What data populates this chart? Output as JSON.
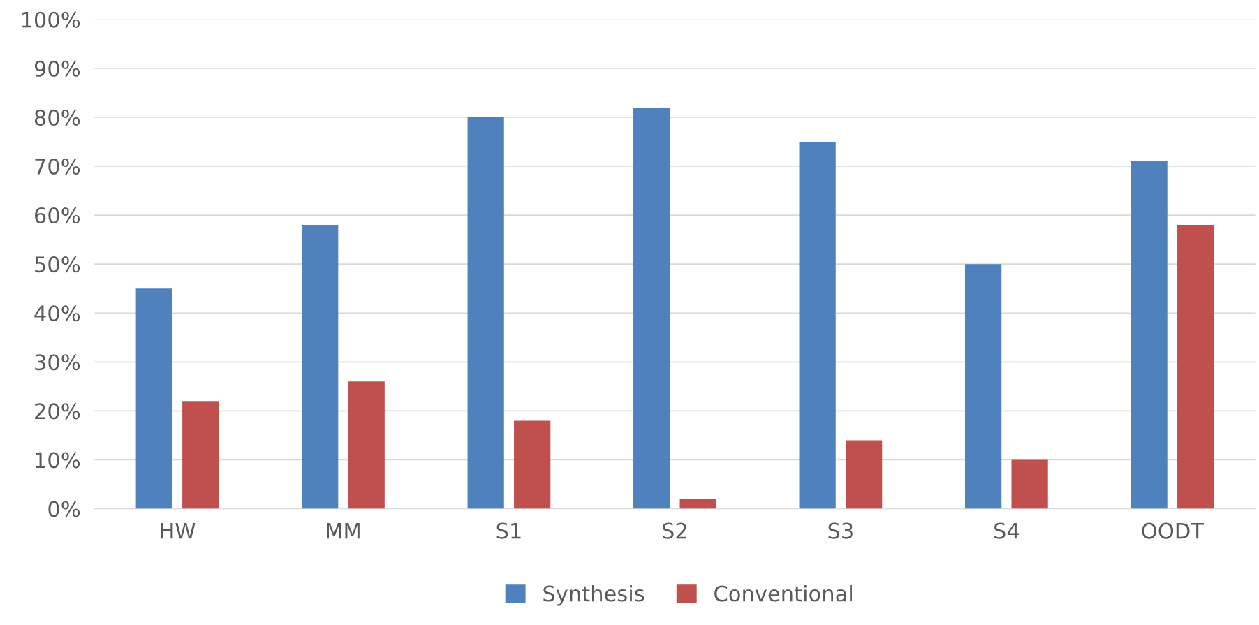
{
  "chart_data": {
    "type": "bar",
    "categories": [
      "HW",
      "MM",
      "S1",
      "S2",
      "S3",
      "S4",
      "OODT"
    ],
    "series": [
      {
        "name": "Synthesis",
        "color": "#4f81bd",
        "values": [
          45,
          58,
          80,
          82,
          75,
          50,
          71
        ]
      },
      {
        "name": "Conventional",
        "color": "#c0504d",
        "values": [
          22,
          26,
          18,
          2,
          14,
          10,
          58
        ]
      }
    ],
    "ylim": [
      0,
      100
    ],
    "yticks": [
      {
        "value": 0,
        "label": "0%"
      },
      {
        "value": 10,
        "label": "10%"
      },
      {
        "value": 20,
        "label": "20%"
      },
      {
        "value": 30,
        "label": "30%"
      },
      {
        "value": 40,
        "label": "40%"
      },
      {
        "value": 50,
        "label": "50%"
      },
      {
        "value": 60,
        "label": "60%"
      },
      {
        "value": 70,
        "label": "70%"
      },
      {
        "value": 80,
        "label": "80%"
      },
      {
        "value": 90,
        "label": "90%"
      },
      {
        "value": 100,
        "label": "100%"
      }
    ],
    "grid": "y",
    "legend": "bottom"
  }
}
